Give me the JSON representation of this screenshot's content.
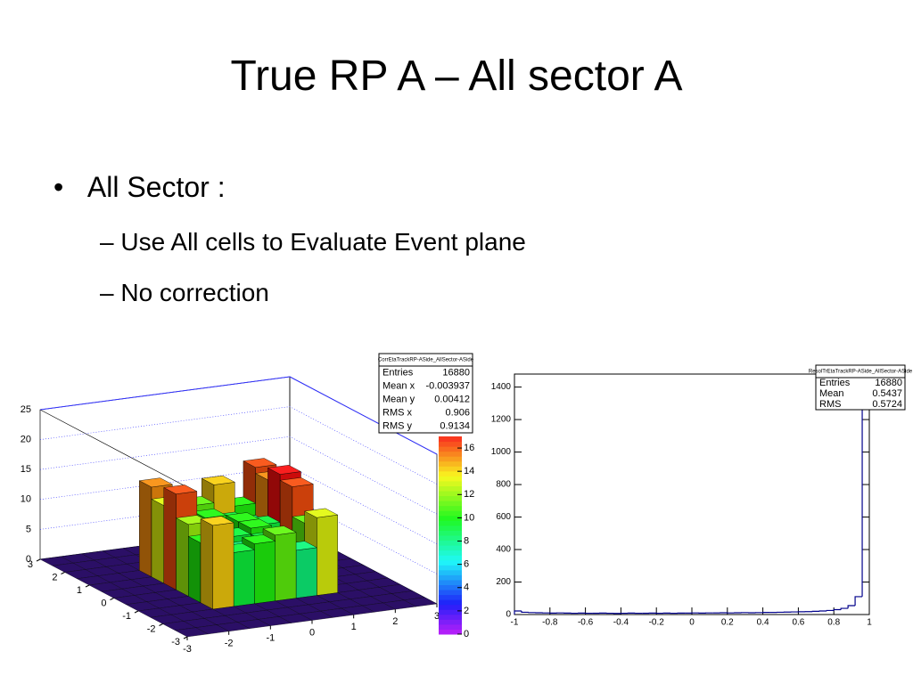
{
  "slide": {
    "title": "True RP A – All sector A",
    "bullets": [
      {
        "text": "All Sector :",
        "sub": [
          "Use All cells to Evaluate Event plane",
          "No correction"
        ]
      }
    ]
  },
  "chart_data": [
    {
      "type": "lego",
      "stats_title": "CorrEtaTrackRP-ASide_AllSector-ASide",
      "stats": [
        {
          "label": "Entries",
          "value": 16880
        },
        {
          "label": "Mean x",
          "value": -0.003937
        },
        {
          "label": "Mean y",
          "value": 0.00412
        },
        {
          "label": "RMS x",
          "value": 0.906
        },
        {
          "label": "RMS y",
          "value": 0.9134
        }
      ],
      "xlim": [
        -3,
        3
      ],
      "xticks": [
        -3,
        -2,
        -1,
        0,
        1,
        2,
        3
      ],
      "ylim": [
        -3,
        3
      ],
      "yticks": [
        -3,
        -2,
        -1,
        0,
        1,
        2,
        3
      ],
      "zlim": [
        0,
        25
      ],
      "zticks": [
        0,
        5,
        10,
        15,
        20,
        25
      ],
      "clim": [
        0,
        17
      ],
      "cticks": [
        0,
        2,
        4,
        6,
        8,
        10,
        12,
        14,
        16
      ],
      "z": [
        [
          0,
          0,
          0,
          0,
          0,
          0,
          0,
          0,
          0,
          0,
          0,
          0
        ],
        [
          0,
          0,
          0,
          0,
          0,
          0,
          0,
          0,
          0,
          0,
          0,
          0
        ],
        [
          0,
          0,
          0,
          0,
          0,
          0,
          0,
          0,
          0,
          0,
          0,
          0
        ],
        [
          0,
          0,
          0,
          14,
          9,
          10,
          11,
          8,
          13,
          0,
          0,
          0
        ],
        [
          0,
          0,
          0,
          10,
          7,
          8,
          9,
          7,
          11,
          0,
          0,
          0
        ],
        [
          0,
          0,
          0,
          12,
          8,
          9,
          10,
          8,
          16,
          0,
          0,
          0
        ],
        [
          0,
          0,
          0,
          16,
          9,
          8,
          10,
          9,
          17,
          0,
          0,
          0
        ],
        [
          0,
          0,
          0,
          13,
          8,
          10,
          9,
          8,
          15,
          0,
          0,
          0
        ],
        [
          0,
          0,
          0,
          15,
          12,
          11,
          14,
          10,
          16,
          0,
          0,
          0
        ],
        [
          0,
          0,
          0,
          0,
          0,
          0,
          0,
          0,
          0,
          0,
          0,
          0
        ],
        [
          0,
          0,
          0,
          0,
          0,
          0,
          0,
          0,
          0,
          0,
          0,
          0
        ],
        [
          0,
          0,
          0,
          0,
          0,
          0,
          0,
          0,
          0,
          0,
          0,
          0
        ]
      ]
    },
    {
      "type": "histogram",
      "stats_title": "ResolTrEtaTrackRP-ASide_AllSector-ASide",
      "color": "#00008b",
      "stats": [
        {
          "label": "Entries",
          "value": 16880
        },
        {
          "label": "Mean",
          "value": 0.5437
        },
        {
          "label": "RMS",
          "value": 0.5724
        }
      ],
      "bins": [
        -1,
        -0.96,
        -0.92,
        -0.88,
        -0.84,
        -0.8,
        -0.76,
        -0.72,
        -0.68,
        -0.64,
        -0.6,
        -0.56,
        -0.52,
        -0.48,
        -0.44,
        -0.4,
        -0.36,
        -0.32,
        -0.28,
        -0.24,
        -0.2,
        -0.16,
        -0.12,
        -0.08,
        -0.04,
        0,
        0.04,
        0.08,
        0.12,
        0.16,
        0.2,
        0.24,
        0.28,
        0.32,
        0.36,
        0.4,
        0.44,
        0.48,
        0.52,
        0.56,
        0.6,
        0.64,
        0.68,
        0.72,
        0.76,
        0.8,
        0.84,
        0.88,
        0.92,
        0.96,
        1
      ],
      "values": [
        22,
        14,
        12,
        11,
        10,
        9,
        10,
        9,
        8,
        9,
        8,
        8,
        9,
        8,
        7,
        8,
        9,
        8,
        8,
        9,
        8,
        9,
        8,
        9,
        9,
        10,
        9,
        10,
        10,
        11,
        10,
        11,
        12,
        11,
        12,
        13,
        13,
        14,
        15,
        16,
        17,
        18,
        20,
        22,
        25,
        30,
        38,
        55,
        110,
        1450
      ],
      "xlim": [
        -1,
        1
      ],
      "xticks": [
        -1,
        -0.8,
        -0.6,
        -0.4,
        -0.2,
        0,
        0.2,
        0.4,
        0.6,
        0.8,
        1
      ],
      "ylim": [
        0,
        1480
      ],
      "yticks": [
        0,
        200,
        400,
        600,
        800,
        1000,
        1200,
        1400
      ]
    }
  ]
}
